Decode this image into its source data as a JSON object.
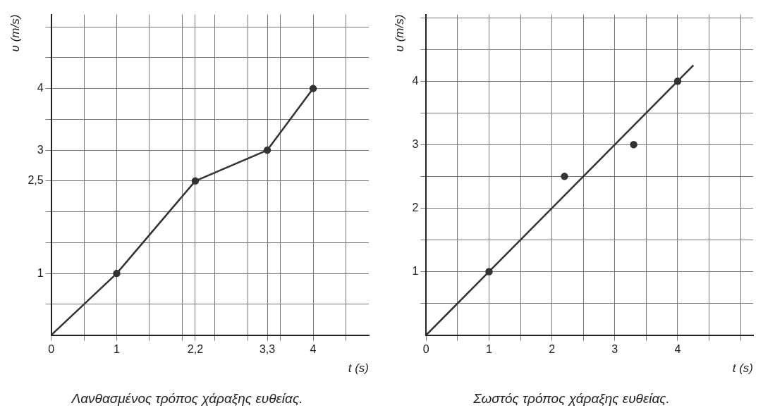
{
  "chart_data": [
    {
      "type": "line",
      "title": "Λανθασμένος τρόπος χάραξης ευθείας.",
      "xlabel": "t (s)",
      "ylabel": "υ (m/s)",
      "xlim": [
        0,
        4.85
      ],
      "ylim": [
        0,
        5.2
      ],
      "xticks": [
        0,
        {
          "value": 0.5,
          "label": null
        },
        1,
        {
          "value": 1.5,
          "label": null
        },
        {
          "value": 2,
          "label": null
        },
        {
          "value": 2.2,
          "label": "2,2"
        },
        {
          "value": 2.5,
          "label": null
        },
        {
          "value": 3,
          "label": null
        },
        {
          "value": 3.3,
          "label": "3,3"
        },
        {
          "value": 3.5,
          "label": null
        },
        4,
        {
          "value": 4.5,
          "label": null
        }
      ],
      "yticks": [
        {
          "value": 0.5,
          "label": null
        },
        1,
        {
          "value": 1.5,
          "label": null
        },
        {
          "value": 2,
          "label": null
        },
        {
          "value": 2.5,
          "label": "2,5"
        },
        3,
        {
          "value": 3.5,
          "label": null
        },
        4,
        {
          "value": 4.5,
          "label": null
        },
        {
          "value": 5,
          "label": null
        }
      ],
      "grid": true,
      "series": [
        {
          "type": "line",
          "color": "#333333",
          "x": [
            0,
            1,
            2.2,
            3.3,
            4
          ],
          "values": [
            0,
            1,
            2.5,
            3,
            4
          ],
          "marker": "none",
          "line_style": "solid"
        },
        {
          "type": "scatter",
          "color": "#333333",
          "x": [
            1,
            2.2,
            3.3,
            4
          ],
          "values": [
            1,
            2.5,
            3,
            4
          ],
          "marker": "circle"
        }
      ]
    },
    {
      "type": "line",
      "title": "Σωστός τρόπος χάραξης ευθείας.",
      "xlabel": "t (s)",
      "ylabel": "υ (m/s)",
      "xlim": [
        0,
        5.2
      ],
      "ylim": [
        0,
        5.05
      ],
      "xticks": [
        0,
        {
          "value": 0.5,
          "label": null
        },
        1,
        {
          "value": 1.5,
          "label": null
        },
        2,
        {
          "value": 2.5,
          "label": null
        },
        3,
        {
          "value": 3.5,
          "label": null
        },
        4,
        {
          "value": 4.5,
          "label": null
        },
        {
          "value": 5,
          "label": null
        }
      ],
      "yticks": [
        {
          "value": 0.5,
          "label": null
        },
        1,
        {
          "value": 1.5,
          "label": null
        },
        2,
        {
          "value": 2.5,
          "label": null
        },
        3,
        {
          "value": 3.5,
          "label": null
        },
        4,
        {
          "value": 4.5,
          "label": null
        },
        {
          "value": 5,
          "label": null
        }
      ],
      "grid": true,
      "series": [
        {
          "type": "scatter",
          "color": "#333333",
          "x": [
            1,
            2.2,
            3.3,
            4
          ],
          "values": [
            1,
            2.5,
            3,
            4
          ],
          "marker": "circle"
        },
        {
          "type": "line",
          "color": "#333333",
          "x": [
            0,
            4.25
          ],
          "values": [
            0,
            4.25
          ],
          "marker": "none",
          "line_style": "solid"
        }
      ]
    }
  ]
}
